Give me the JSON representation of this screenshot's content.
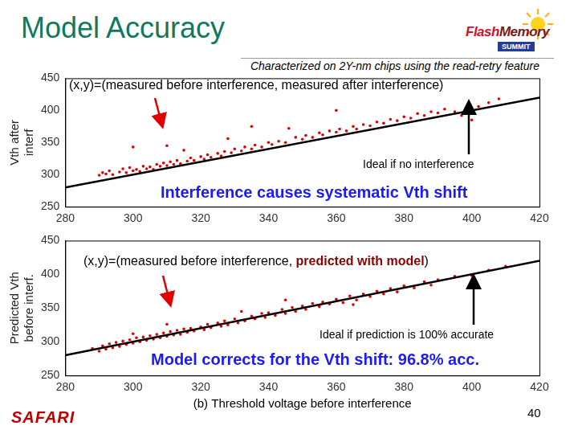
{
  "slide": {
    "title": "Model Accuracy",
    "subtitle": "Characterized on 2Y-nm chips using the read-retry feature",
    "logo": {
      "text": [
        "Flash",
        "Memory"
      ],
      "badge": "SUMMIT"
    },
    "footer": "SAFARI",
    "page": 40
  },
  "chart_data": [
    {
      "type": "scatter",
      "annotation": "(x,y)=(measured before interference, measured after interference)",
      "headline": "Interference causes systematic Vth shift",
      "y_label": [
        "Vth after",
        "interf"
      ],
      "xlim": [
        280,
        420
      ],
      "xticks": [
        280,
        300,
        320,
        340,
        360,
        380,
        400,
        420
      ],
      "ylim": [
        250,
        450
      ],
      "yticks": [
        250,
        300,
        350,
        400,
        450
      ],
      "grid": false,
      "points": {
        "color": "#e00000",
        "x": [
          290,
          291,
          292,
          293,
          294,
          296,
          297,
          298,
          299,
          300,
          300,
          301,
          302,
          303,
          304,
          305,
          306,
          307,
          308,
          309,
          310,
          311,
          312,
          313,
          314,
          315,
          316,
          317,
          318,
          320,
          321,
          322,
          323,
          325,
          326,
          327,
          328,
          329,
          330,
          332,
          333,
          335,
          336,
          338,
          340,
          341,
          343,
          345,
          346,
          348,
          350,
          351,
          353,
          355,
          356,
          358,
          360,
          361,
          363,
          365,
          366,
          368,
          370,
          372,
          374,
          376,
          378,
          380,
          382,
          384,
          386,
          388,
          390,
          392,
          395,
          397,
          400,
          402,
          405,
          408,
          400,
          310,
          335,
          360
        ],
        "y": [
          299,
          303,
          301,
          306,
          300,
          304,
          309,
          303,
          311,
          306,
          343,
          308,
          305,
          313,
          309,
          312,
          308,
          316,
          313,
          318,
          314,
          320,
          316,
          322,
          317,
          338,
          321,
          326,
          322,
          328,
          324,
          331,
          327,
          333,
          329,
          336,
          356,
          334,
          340,
          337,
          343,
          340,
          346,
          343,
          350,
          347,
          352,
          350,
          372,
          358,
          355,
          361,
          358,
          365,
          362,
          368,
          366,
          371,
          368,
          375,
          371,
          378,
          376,
          382,
          380,
          386,
          384,
          390,
          388,
          395,
          392,
          398,
          396,
          402,
          398,
          392,
          400,
          406,
          412,
          418,
          385,
          345,
          375,
          400
        ]
      },
      "ideal_line": {
        "label": "Ideal if no interference",
        "color": "#000000",
        "x": [
          280,
          420
        ],
        "y": [
          280,
          420
        ]
      }
    },
    {
      "type": "scatter",
      "annotation": "(x,y)=(measured before interference, predicted with model)",
      "annotation_highlight": "predicted with model",
      "headline": "Model corrects for the Vth shift: 96.8% acc.",
      "y_label": [
        "Predicted Vth",
        "before interf."
      ],
      "x_label": "(b) Threshold voltage before interference",
      "xlim": [
        280,
        420
      ],
      "xticks": [
        280,
        300,
        320,
        340,
        360,
        380,
        400,
        420
      ],
      "ylim": [
        250,
        450
      ],
      "yticks": [
        250,
        300,
        350,
        400,
        450
      ],
      "grid": false,
      "points": {
        "color": "#e00000",
        "x": [
          288,
          290,
          291,
          292,
          293,
          294,
          295,
          296,
          297,
          298,
          299,
          300,
          301,
          302,
          303,
          304,
          305,
          306,
          307,
          308,
          309,
          310,
          311,
          312,
          313,
          314,
          315,
          316,
          317,
          318,
          320,
          321,
          322,
          323,
          325,
          326,
          327,
          328,
          330,
          331,
          332,
          333,
          335,
          336,
          338,
          339,
          340,
          342,
          344,
          345,
          347,
          348,
          350,
          351,
          353,
          355,
          356,
          358,
          360,
          362,
          364,
          366,
          368,
          370,
          372,
          374,
          376,
          378,
          380,
          383,
          386,
          388,
          390,
          395,
          400,
          405,
          410,
          300,
          310,
          345,
          365
        ],
        "y": [
          290,
          286,
          294,
          289,
          297,
          291,
          299,
          293,
          301,
          296,
          303,
          298,
          306,
          300,
          307,
          302,
          309,
          304,
          311,
          306,
          313,
          308,
          315,
          310,
          317,
          311,
          319,
          314,
          320,
          316,
          322,
          318,
          326,
          321,
          328,
          323,
          331,
          325,
          334,
          328,
          345,
          331,
          338,
          334,
          342,
          336,
          343,
          339,
          348,
          342,
          351,
          345,
          353,
          348,
          357,
          352,
          359,
          356,
          363,
          358,
          368,
          362,
          371,
          367,
          375,
          371,
          379,
          374,
          383,
          380,
          389,
          384,
          392,
          397,
          398,
          406,
          412,
          312,
          326,
          362,
          355
        ]
      },
      "ideal_line": {
        "label": "Ideal if prediction is 100% accurate",
        "color": "#000000",
        "x": [
          280,
          420
        ],
        "y": [
          280,
          420
        ]
      }
    }
  ]
}
